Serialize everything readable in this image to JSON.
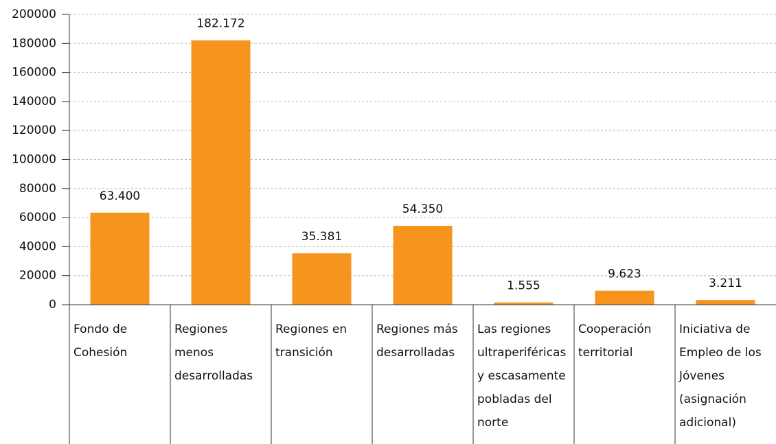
{
  "chart_data": {
    "type": "bar",
    "categories": [
      "Fondo de Cohesión",
      "Regiones menos desarrolladas",
      "Regiones en transición",
      "Regiones más desarrolladas",
      "Las regiones ultraperiféricas y escasamente pobladas del norte",
      "Cooperación territorial",
      "Iniciativa de Empleo de los Jóvenes (asignación adicional)"
    ],
    "values": [
      63400,
      182172,
      35381,
      54350,
      1555,
      9623,
      3211
    ],
    "value_labels": [
      "63.400",
      "182.172",
      "35.381",
      "54.350",
      "1.555",
      "9.623",
      "3.211"
    ],
    "color": "#f7941d",
    "ylim": [
      0,
      200000
    ],
    "yticks": [
      0,
      20000,
      40000,
      60000,
      80000,
      100000,
      120000,
      140000,
      160000,
      180000,
      200000
    ],
    "grid": true
  }
}
